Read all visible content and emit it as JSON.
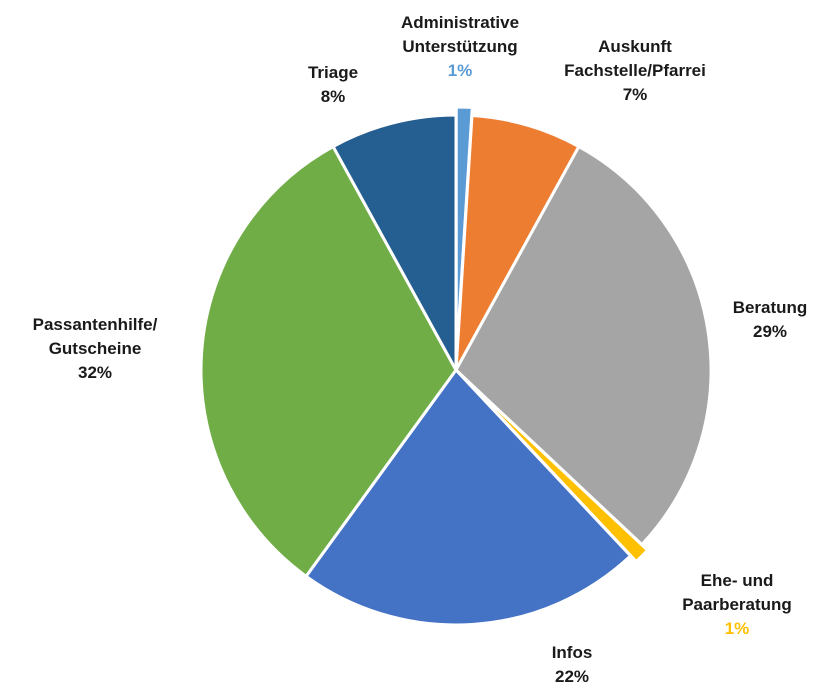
{
  "chart_data": {
    "type": "pie",
    "title": "",
    "series": [
      {
        "values": [
          1,
          7,
          29,
          1,
          22,
          32,
          8
        ]
      }
    ],
    "slices": [
      {
        "key": "administrative",
        "label_lines": [
          "Administrative",
          "Unterstützung"
        ],
        "value": 1,
        "pct_label": "1%",
        "color": "#5B9BD5",
        "pct_color": "#5B9BD5",
        "exploded": true
      },
      {
        "key": "auskunft",
        "label_lines": [
          "Auskunft",
          "Fachstelle/Pfarrei"
        ],
        "value": 7,
        "pct_label": "7%",
        "color": "#ED7D31",
        "pct_color": "#1a1a1a",
        "exploded": false
      },
      {
        "key": "beratung",
        "label_lines": [
          "Beratung"
        ],
        "value": 29,
        "pct_label": "29%",
        "color": "#A5A5A5",
        "pct_color": "#1a1a1a",
        "exploded": false
      },
      {
        "key": "ehe",
        "label_lines": [
          "Ehe- und",
          "Paarberatung"
        ],
        "value": 1,
        "pct_label": "1%",
        "color": "#FFC000",
        "pct_color": "#FFC000",
        "exploded": true
      },
      {
        "key": "infos",
        "label_lines": [
          "Infos"
        ],
        "value": 22,
        "pct_label": "22%",
        "color": "#4472C4",
        "pct_color": "#1a1a1a",
        "exploded": false
      },
      {
        "key": "passantenhilfe",
        "label_lines": [
          "Passantenhilfe/",
          "Gutscheine"
        ],
        "value": 32,
        "pct_label": "32%",
        "color": "#70AD47",
        "pct_color": "#1a1a1a",
        "exploded": false
      },
      {
        "key": "triage",
        "label_lines": [
          "Triage"
        ],
        "value": 8,
        "pct_label": "8%",
        "color": "#255E91",
        "pct_color": "#1a1a1a",
        "exploded": false
      }
    ],
    "start_angle_deg": 0,
    "direction": "clockwise",
    "legend": "none",
    "data_labels": "outside"
  }
}
